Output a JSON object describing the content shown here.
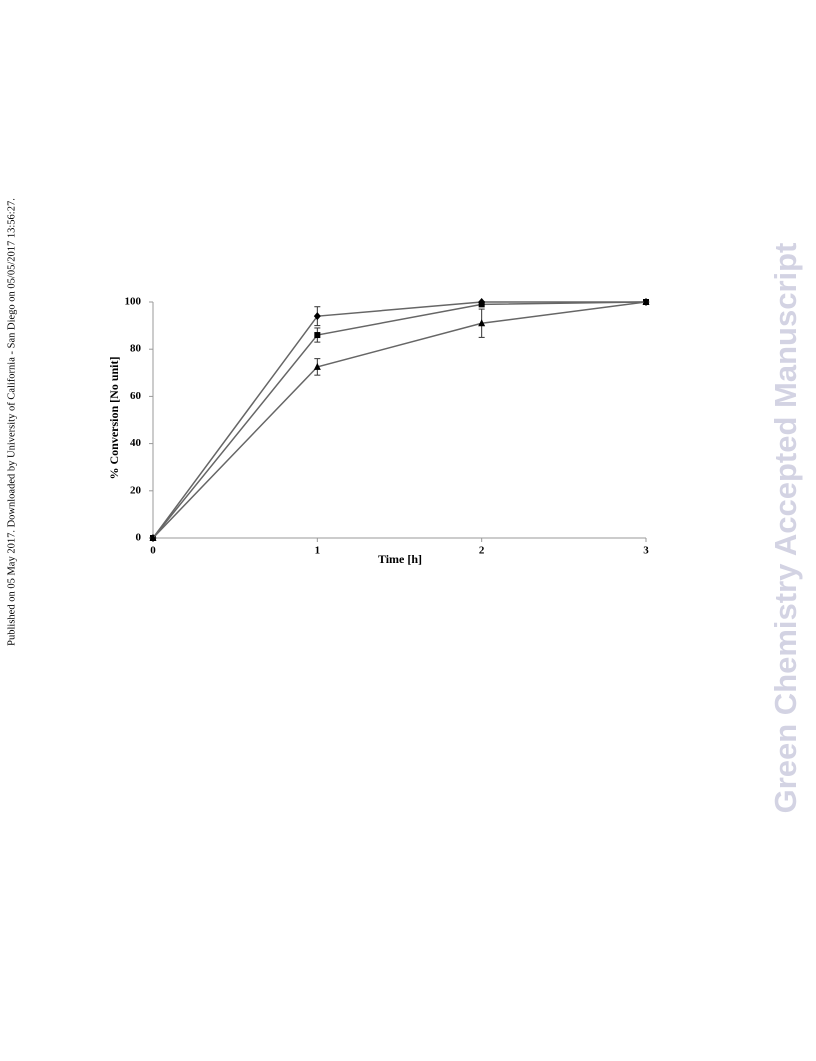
{
  "sidebar_note": "Published on 05 May 2017. Downloaded by University of California - San Diego on 05/05/2017 13:56:27.",
  "watermark": "Green Chemistry Accepted Manuscript",
  "chart_data": {
    "type": "line",
    "x_label": "Time [h]",
    "y_label": "% Conversion [No unit]",
    "x": [
      0,
      1,
      2,
      3
    ],
    "series": [
      {
        "color": "#666666",
        "marker": "diamond",
        "values": [
          0,
          94,
          100,
          100
        ],
        "errors": [
          0,
          4,
          0,
          0
        ]
      },
      {
        "color": "#666666",
        "marker": "square",
        "values": [
          0,
          86,
          99,
          100
        ],
        "errors": [
          0,
          3,
          0,
          0
        ]
      },
      {
        "color": "#666666",
        "marker": "triangle",
        "values": [
          0,
          72.5,
          91,
          100
        ],
        "errors": [
          0,
          3.5,
          6,
          0
        ]
      }
    ],
    "xlim": [
      0,
      3
    ],
    "xticks": [
      0,
      1,
      2,
      3
    ],
    "ylim": [
      0,
      100
    ],
    "yticks": [
      0,
      20,
      40,
      60,
      80,
      100
    ],
    "grid": false
  }
}
